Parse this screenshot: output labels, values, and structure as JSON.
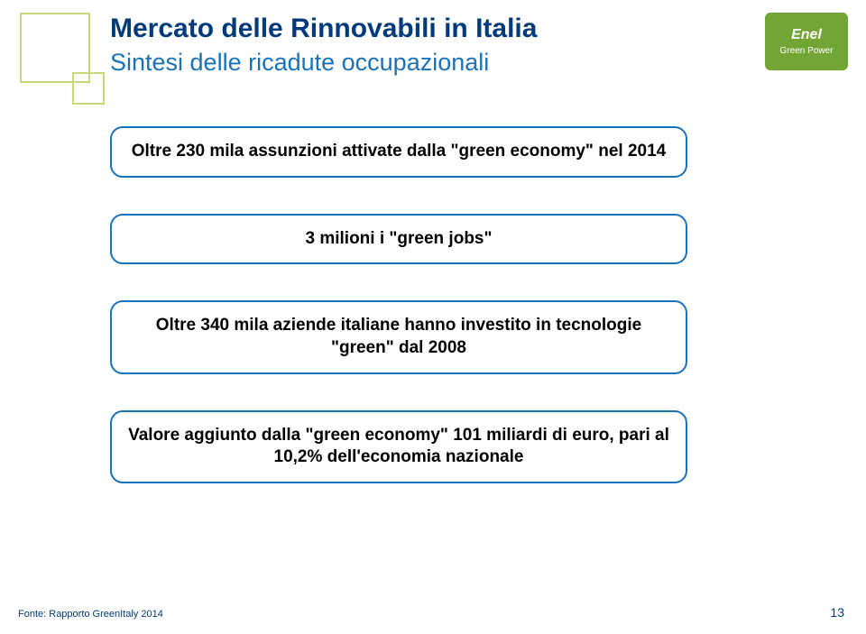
{
  "header": {
    "title": "Mercato delle Rinnovabili in Italia",
    "subtitle": "Sintesi delle ricadute occupazionali"
  },
  "logo": {
    "brand": "Enel",
    "sub": "Green Power"
  },
  "boxes": [
    {
      "text": "Oltre 230 mila assunzioni attivate dalla \"green economy\" nel 2014"
    },
    {
      "text": "3 milioni i \"green jobs\""
    },
    {
      "text": "Oltre 340 mila aziende italiane hanno investito in tecnologie \"green\" dal 2008"
    },
    {
      "text": "Valore aggiunto dalla \"green economy\" 101 miliardi di euro, pari al 10,2% dell'economia nazionale"
    }
  ],
  "footer": {
    "label": "Fonte:",
    "source": "Rapporto GreenItaly 2014"
  },
  "page_number": "13",
  "colors": {
    "title": "#003a7a",
    "subtitle": "#1a72b8",
    "box_border": "#1a72b8",
    "decor": "#c7d97a",
    "logo_bg": "#73a534",
    "background": "#ffffff"
  }
}
